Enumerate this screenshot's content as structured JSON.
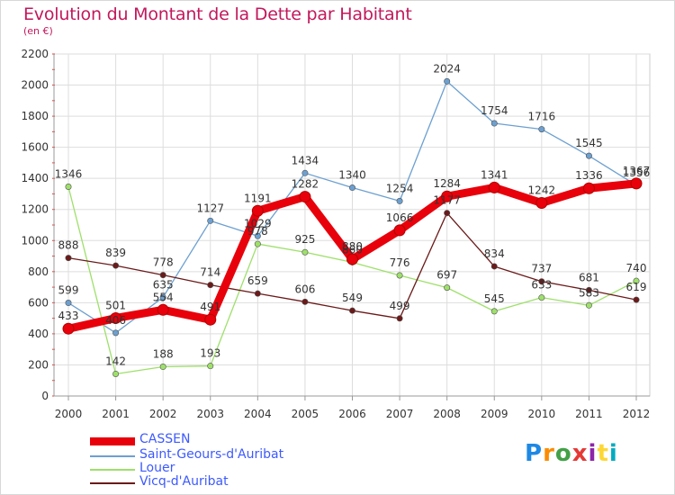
{
  "header": {
    "title": "Evolution du Montant de la Dette par Habitant",
    "subtitle": "(en €)"
  },
  "logo": {
    "text": "Proxiti"
  },
  "chart_data": {
    "type": "line",
    "title": "Evolution du Montant de la Dette par Habitant",
    "subtitle": "(en €)",
    "xlabel": "",
    "ylabel": "",
    "x": [
      "2000",
      "2001",
      "2002",
      "2003",
      "2004",
      "2005",
      "2006",
      "2007",
      "2008",
      "2009",
      "2010",
      "2011",
      "2012"
    ],
    "ylim": [
      0,
      2200
    ],
    "yticks": [
      0,
      200,
      400,
      600,
      800,
      1000,
      1200,
      1400,
      1600,
      1800,
      2000,
      2200
    ],
    "grid": true,
    "legend_position": "bottom-left",
    "series": [
      {
        "name": "CASSEN",
        "color": "#e8000b",
        "values": [
          433,
          501,
          554,
          491,
          1191,
          1282,
          880,
          1066,
          1284,
          1341,
          1242,
          1336,
          1367
        ]
      },
      {
        "name": "Saint-Geours-d'Auribat",
        "color": "#6ca0d0",
        "values": [
          599,
          406,
          635,
          1127,
          1029,
          1434,
          1340,
          1254,
          2024,
          1754,
          1716,
          1545,
          1356
        ]
      },
      {
        "name": "Louer",
        "color": "#9ee06a",
        "values": [
          1346,
          142,
          188,
          193,
          978,
          925,
          860,
          776,
          697,
          545,
          633,
          583,
          740
        ]
      },
      {
        "name": "Vicq-d'Auribat",
        "color": "#6b1a1a",
        "values": [
          888,
          839,
          778,
          714,
          659,
          606,
          549,
          499,
          1177,
          834,
          737,
          681,
          619
        ]
      }
    ]
  }
}
